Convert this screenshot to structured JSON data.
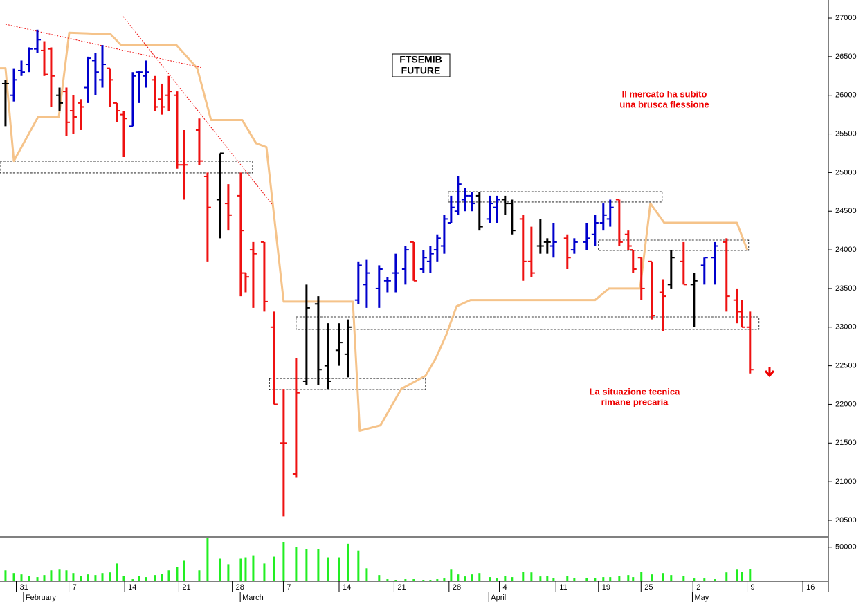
{
  "chart_data": {
    "type": "ohlc",
    "title": [
      "FTSEMIB",
      "FUTURE"
    ],
    "annotations": [
      [
        "Il mercato ha subito",
        "una brusca flessione"
      ],
      [
        "La situazione tecnica",
        "rimane precaria"
      ]
    ],
    "x": [
      -1.29,
      -0.21,
      0.77,
      1.75,
      2.83,
      3.72,
      4.61,
      5.69,
      6.58,
      7.47,
      8.46,
      9.35,
      10.33,
      11.23,
      12.21,
      13.1,
      14,
      15.16,
      15.96,
      16.86,
      18.02,
      18.91,
      19.81,
      20.88,
      21.77,
      23.74,
      24.81,
      26.42,
      27.49,
      29.1,
      29.73,
      30.71,
      32.14,
      33.39,
      34.64,
      36.25,
      37.59,
      39.11,
      40.36,
      41.79,
      42.95,
      44.29,
      45.37,
      46.97,
      48.05,
      49.12,
      50.37,
      51.44,
      52.69,
      53.59,
      54.48,
      55.38,
      56.27,
      57.16,
      58.06,
      58.95,
      59.93,
      61.27,
      62.17,
      63.24,
      64.13,
      65.56,
      66.64,
      67.8,
      68.69,
      69.5,
      71.28,
      72.18,
      73.79,
      74.86,
      75.93,
      76.82,
      77.99,
      79.15,
      79.77,
      80.84,
      82.19,
      83.62,
      84.69,
      86.3,
      87.64,
      88.98,
      90.32,
      91.84,
      93.18,
      93.81,
      94.88
    ],
    "open": [
      26150,
      26000,
      26320,
      26400,
      26600,
      26580,
      26600,
      26000,
      26050,
      25800,
      25900,
      26100,
      26450,
      26200,
      26350,
      25900,
      25750,
      25600,
      26300,
      26250,
      26200,
      25950,
      26000,
      26000,
      25100,
      25550,
      24950,
      24650,
      24600,
      24700,
      23700,
      24000,
      24100,
      23000,
      21500,
      21100,
      22300,
      23300,
      22500,
      22700,
      22650,
      23350,
      23550,
      23500,
      23600,
      23700,
      23750,
      24100,
      23750,
      23850,
      24000,
      24050,
      24350,
      24500,
      24650,
      24700,
      24700,
      24400,
      24550,
      24650,
      24600,
      24400,
      23850,
      24050,
      24100,
      24050,
      24150,
      24000,
      24100,
      24200,
      24350,
      24400,
      24650,
      24200,
      24000,
      23900,
      23850,
      23450,
      23550,
      23850,
      23550,
      23800,
      23900,
      24100,
      23350,
      23200,
      23000
    ],
    "high": [
      26200,
      26350,
      26450,
      26620,
      26850,
      26700,
      26620,
      26100,
      26100,
      26000,
      25950,
      26500,
      26550,
      26650,
      26350,
      25900,
      25800,
      26300,
      26320,
      26450,
      26250,
      26150,
      26250,
      26050,
      25550,
      25700,
      25000,
      25250,
      24850,
      25000,
      23700,
      24100,
      24100,
      23200,
      22200,
      22600,
      23550,
      23400,
      23050,
      23050,
      23100,
      23850,
      23870,
      23800,
      23650,
      23950,
      24050,
      24100,
      24000,
      24050,
      24200,
      24450,
      24700,
      24950,
      24800,
      24750,
      24750,
      24700,
      24700,
      24700,
      24650,
      24450,
      24300,
      24400,
      24150,
      24350,
      24200,
      24150,
      24350,
      24450,
      24600,
      24650,
      24650,
      24250,
      24000,
      23900,
      23850,
      23620,
      24000,
      24100,
      23700,
      23900,
      24100,
      24150,
      23500,
      23350,
      23200
    ],
    "low": [
      25600,
      25920,
      26250,
      26300,
      26550,
      26250,
      25850,
      25800,
      25470,
      25500,
      25550,
      25900,
      26000,
      26100,
      25850,
      25650,
      25200,
      25600,
      25900,
      26100,
      25800,
      25750,
      25800,
      25050,
      24650,
      25100,
      23850,
      24150,
      24250,
      23400,
      23450,
      23250,
      23200,
      22000,
      20550,
      21050,
      22250,
      22250,
      22200,
      22500,
      22350,
      23300,
      23250,
      23250,
      23450,
      23450,
      23550,
      23600,
      23700,
      23700,
      23850,
      23950,
      24350,
      24450,
      24500,
      24500,
      24250,
      24350,
      24350,
      24450,
      24200,
      23600,
      23650,
      23950,
      23950,
      23900,
      23750,
      23950,
      24000,
      24050,
      24250,
      24300,
      24050,
      24000,
      23700,
      23350,
      23100,
      22950,
      23500,
      23550,
      23000,
      23550,
      23550,
      23200,
      23050,
      23000,
      22400
    ],
    "close": [
      26150,
      26200,
      26300,
      26600,
      26720,
      26270,
      26250,
      25900,
      25650,
      25720,
      25850,
      26480,
      26300,
      26400,
      26200,
      25800,
      25700,
      26250,
      26300,
      26300,
      25850,
      25850,
      26050,
      25100,
      25100,
      25150,
      24550,
      25250,
      24450,
      24250,
      23650,
      23950,
      23330,
      22000,
      21500,
      22150,
      23250,
      22450,
      22300,
      22800,
      23000,
      23800,
      23700,
      23750,
      23600,
      23700,
      24000,
      23600,
      23900,
      23950,
      24150,
      24400,
      24550,
      24850,
      24700,
      24600,
      24300,
      24600,
      24650,
      24600,
      24250,
      23850,
      23700,
      24050,
      24100,
      24100,
      23900,
      24100,
      24150,
      24350,
      24450,
      24550,
      24100,
      24050,
      23750,
      23500,
      23150,
      23400,
      23900,
      23550,
      23600,
      23900,
      24050,
      23400,
      23200,
      23000,
      22450
    ],
    "colors": [
      "#000000",
      "#0000cc",
      "#0000cc",
      "#0000cc",
      "#0000cc",
      "#ee1111",
      "#ee1111",
      "#000000",
      "#ee1111",
      "#ee1111",
      "#ee1111",
      "#0000cc",
      "#0000cc",
      "#0000cc",
      "#ee1111",
      "#ee1111",
      "#ee1111",
      "#0000cc",
      "#0000cc",
      "#0000cc",
      "#ee1111",
      "#ee1111",
      "#ee1111",
      "#ee1111",
      "#ee1111",
      "#ee1111",
      "#ee1111",
      "#000000",
      "#ee1111",
      "#ee1111",
      "#ee1111",
      "#ee1111",
      "#ee1111",
      "#ee1111",
      "#ee1111",
      "#ee1111",
      "#000000",
      "#000000",
      "#000000",
      "#000000",
      "#000000",
      "#0000cc",
      "#0000cc",
      "#0000cc",
      "#0000cc",
      "#0000cc",
      "#0000cc",
      "#ee1111",
      "#0000cc",
      "#0000cc",
      "#0000cc",
      "#0000cc",
      "#0000cc",
      "#0000cc",
      "#0000cc",
      "#0000cc",
      "#000000",
      "#0000cc",
      "#0000cc",
      "#000000",
      "#000000",
      "#ee1111",
      "#ee1111",
      "#000000",
      "#000000",
      "#0000cc",
      "#ee1111",
      "#0000cc",
      "#0000cc",
      "#0000cc",
      "#0000cc",
      "#0000cc",
      "#ee1111",
      "#ee1111",
      "#ee1111",
      "#ee1111",
      "#ee1111",
      "#ee1111",
      "#000000",
      "#ee1111",
      "#000000",
      "#0000cc",
      "#0000cc",
      "#ee1111",
      "#ee1111",
      "#ee1111",
      "#ee1111"
    ],
    "indicator": {
      "color": "#f5c38a",
      "x": [
        -2,
        -1.29,
        -0.21,
        2.92,
        5.6,
        6.94,
        12.3,
        13.64,
        20.79,
        23.47,
        25.26,
        29.28,
        31.07,
        32.41,
        34.64,
        43.58,
        44.47,
        47.15,
        49.83,
        52.96,
        54.3,
        55.64,
        56.98,
        58.77,
        74.86,
        76.65,
        80.67,
        82.01,
        83.8,
        93.18,
        94.52
      ],
      "values": [
        26350,
        26350,
        25150,
        25720,
        25720,
        26810,
        26790,
        26650,
        26650,
        26350,
        25680,
        25680,
        25380,
        25330,
        23330,
        23330,
        21660,
        21730,
        22200,
        22370,
        22600,
        22900,
        23270,
        23350,
        23350,
        23500,
        23500,
        24600,
        24350,
        24350,
        24000
      ]
    },
    "trendlines": [
      {
        "color": "#ee1111",
        "x": [
          -1.29,
          23.92
        ],
        "values": [
          26920,
          26360
        ]
      },
      {
        "color": "#ee1111",
        "x": [
          13.91,
          33.3
        ],
        "values": [
          27020,
          24570
        ]
      }
    ],
    "zones": [
      {
        "x": [
          -2,
          30.62
        ],
        "values": [
          24995,
          25147
        ]
      },
      {
        "x": [
          32.8,
          52.96
        ],
        "values": [
          22192,
          22335
        ]
      },
      {
        "x": [
          36.25,
          96.04
        ],
        "values": [
          22971,
          23132
        ]
      },
      {
        "x": [
          55.91,
          83.53
        ],
        "values": [
          24619,
          24753
        ]
      },
      {
        "x": [
          75.3,
          94.7
        ],
        "values": [
          23992,
          24126
        ]
      }
    ],
    "xlim": [
      -2,
      105
    ],
    "xticks": [
      {
        "value": 0.1,
        "label": "31"
      },
      {
        "value": 6.9,
        "label": "7"
      },
      {
        "value": 14.1,
        "label": "14"
      },
      {
        "value": 21.1,
        "label": "21"
      },
      {
        "value": 28,
        "label": "28"
      },
      {
        "value": 34.6,
        "label": "7"
      },
      {
        "value": 41.8,
        "label": "14"
      },
      {
        "value": 48.9,
        "label": "21"
      },
      {
        "value": 56,
        "label": "28"
      },
      {
        "value": 62.5,
        "label": "4"
      },
      {
        "value": 69.8,
        "label": "11"
      },
      {
        "value": 75.3,
        "label": "19"
      },
      {
        "value": 80.8,
        "label": "25"
      },
      {
        "value": 87.5,
        "label": "2"
      },
      {
        "value": 94.5,
        "label": "9"
      },
      {
        "value": 101.7,
        "label": "16"
      }
    ],
    "month_labels": [
      {
        "value": 1.3,
        "label": "February"
      },
      {
        "value": 29.3,
        "label": "March"
      },
      {
        "value": 61.4,
        "label": "April"
      },
      {
        "value": 87.7,
        "label": "May"
      }
    ],
    "ylim": [
      20285,
      27233
    ],
    "yticks": [
      20500,
      21000,
      21500,
      22000,
      22500,
      23000,
      23500,
      24000,
      24500,
      25000,
      25500,
      26000,
      26500,
      27000
    ],
    "volume": {
      "color": "#22ee22",
      "ylim": [
        0,
        65000
      ],
      "yticks": [
        50000
      ],
      "values": [
        16000,
        12000,
        10000,
        8000,
        6000,
        9000,
        16000,
        17000,
        16000,
        12000,
        8000,
        10000,
        9000,
        12000,
        13000,
        26000,
        8000,
        3000,
        8000,
        6000,
        9000,
        11000,
        16000,
        21000,
        30000,
        16000,
        63000,
        33000,
        25000,
        33000,
        35000,
        38000,
        26000,
        36000,
        57000,
        50000,
        47000,
        47000,
        35000,
        35000,
        55000,
        45000,
        19000,
        9000,
        3000,
        2000,
        3000,
        3000,
        2000,
        2000,
        3000,
        4000,
        17000,
        10000,
        7000,
        10000,
        12000,
        6000,
        4000,
        8000,
        6000,
        14000,
        13000,
        7000,
        8000,
        5000,
        8000,
        5000,
        5000,
        5000,
        6000,
        6000,
        8000,
        9000,
        6000,
        14000,
        10000,
        12000,
        9000,
        8000,
        4000,
        4000,
        3000,
        13000,
        17000,
        14000,
        18000
      ]
    }
  }
}
